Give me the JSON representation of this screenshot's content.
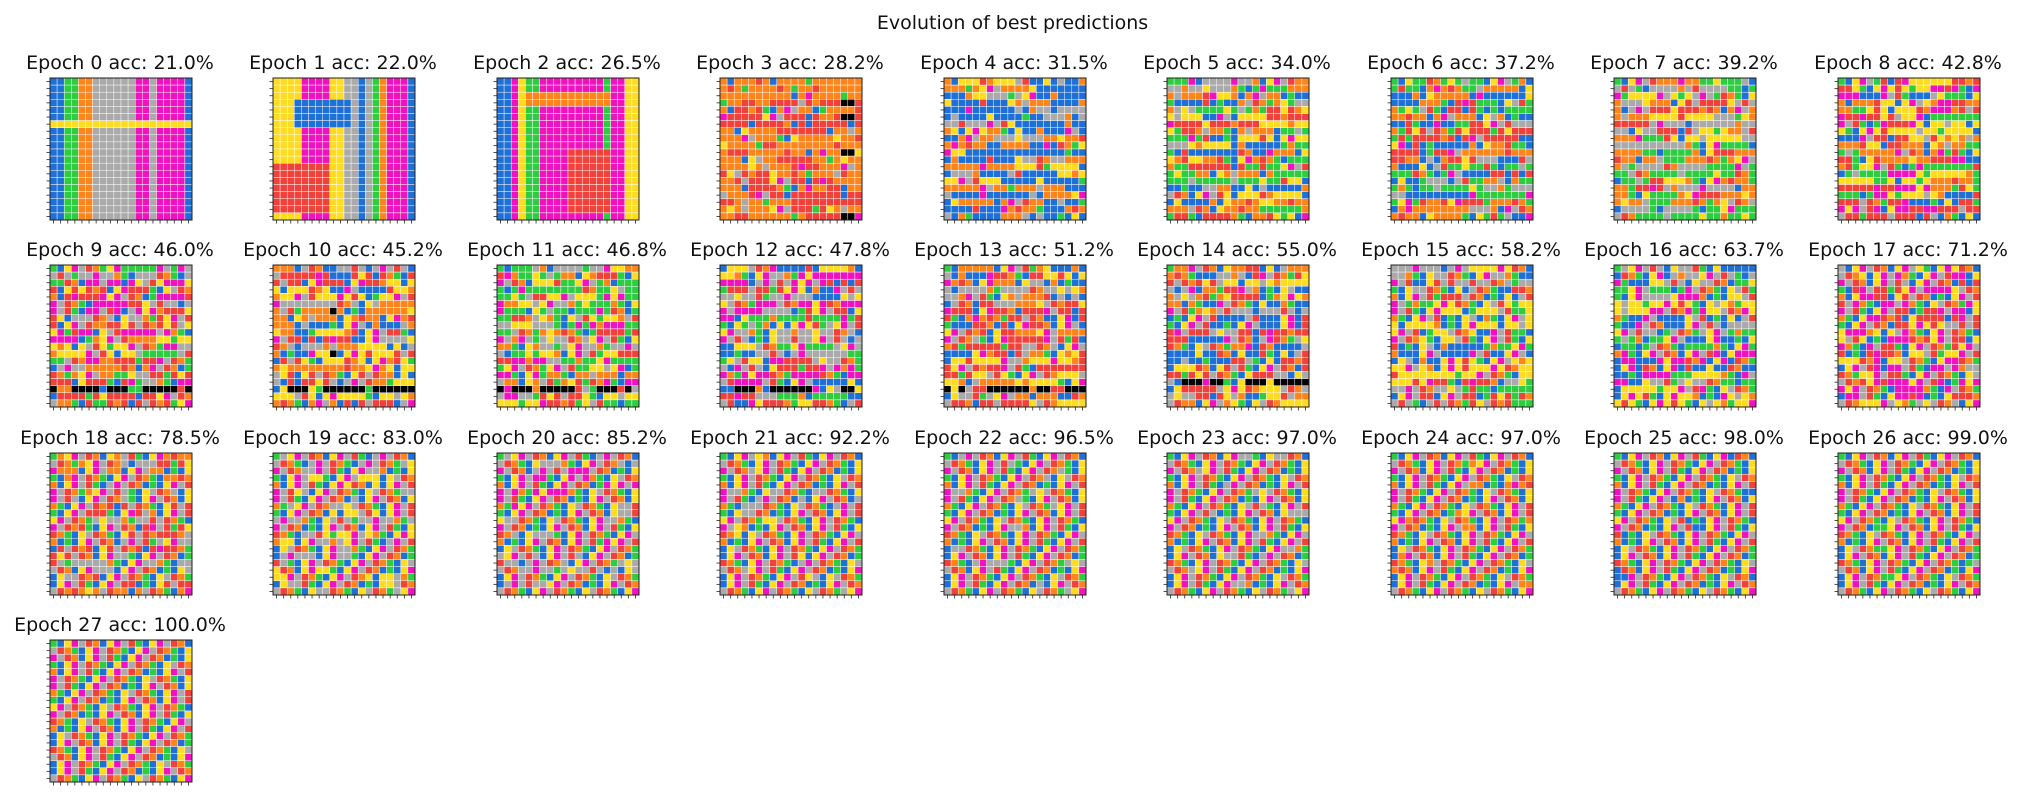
{
  "figure_title": "Evolution of best predictions",
  "palette": {
    "0": "#000000",
    "1": "#1E6FD6",
    "2": "#F2413A",
    "3": "#2ECC40",
    "4": "#FFDC1F",
    "5": "#AAAAAA",
    "6": "#F012BE",
    "7": "#FF851B",
    "8": "#7FDBFF",
    "9": "#870C25"
  },
  "chart_data": {
    "type": "heatmap",
    "title": "Evolution of best predictions",
    "grid_size": [
      20,
      20
    ],
    "target_pattern": {
      "row_a": [
        3,
        1,
        4,
        6,
        5,
        2,
        7,
        1,
        4,
        6,
        5,
        2,
        3,
        1,
        4,
        6,
        5,
        2,
        7,
        1
      ],
      "row_b": [
        5,
        2,
        7,
        3,
        1,
        4,
        6,
        5,
        2,
        7,
        3,
        1,
        4,
        6,
        5,
        2,
        7,
        3,
        1,
        4
      ]
    },
    "panels": [
      {
        "epoch": 0,
        "acc": 21.0,
        "title": "Epoch 0 acc: 21.0%",
        "style": "columns",
        "cols": [
          1,
          1,
          3,
          3,
          7,
          7,
          5,
          5,
          5,
          5,
          5,
          5,
          6,
          6,
          5,
          6,
          6,
          6,
          6,
          1
        ],
        "h_rows": [
          6
        ],
        "h_color": 4,
        "patches": []
      },
      {
        "epoch": 1,
        "acc": 22.0,
        "title": "Epoch 1 acc: 22.0%",
        "style": "columns",
        "cols": [
          4,
          4,
          4,
          4,
          6,
          6,
          6,
          6,
          4,
          4,
          5,
          5,
          1,
          5,
          3,
          7,
          6,
          6,
          6,
          1
        ],
        "h_rows": [],
        "patches": [
          [
            12,
            0,
            7,
            8,
            2
          ],
          [
            3,
            3,
            4,
            8,
            1
          ]
        ]
      },
      {
        "epoch": 2,
        "acc": 26.5,
        "title": "Epoch 2 acc: 26.5%",
        "style": "columns",
        "cols": [
          1,
          1,
          6,
          4,
          3,
          3,
          6,
          6,
          6,
          6,
          6,
          6,
          6,
          6,
          6,
          3,
          6,
          6,
          4,
          4
        ],
        "h_rows": [],
        "patches": [
          [
            2,
            4,
            2,
            12,
            7
          ],
          [
            10,
            10,
            9,
            6,
            2
          ]
        ]
      },
      {
        "epoch": 3,
        "acc": 28.2,
        "title": "Epoch 3 acc: 28.2%",
        "style": "noise",
        "seed": 103,
        "acc_frac": 0.282,
        "base": [
          2,
          7
        ],
        "black_cols": [
          17,
          18
        ]
      },
      {
        "epoch": 4,
        "acc": 31.5,
        "title": "Epoch 4 acc: 31.5%",
        "style": "noise",
        "seed": 104,
        "acc_frac": 0.315,
        "base": [
          1,
          1,
          1,
          7,
          4,
          5
        ]
      },
      {
        "epoch": 5,
        "acc": 34.0,
        "title": "Epoch 5 acc: 34.0%",
        "style": "noise",
        "seed": 105,
        "acc_frac": 0.34,
        "base": [
          7,
          7,
          1,
          3,
          4,
          5,
          2
        ]
      },
      {
        "epoch": 6,
        "acc": 37.2,
        "title": "Epoch 6 acc: 37.2%",
        "style": "noise",
        "seed": 106,
        "acc_frac": 0.372,
        "base": [
          1,
          1,
          3,
          7,
          2,
          5
        ]
      },
      {
        "epoch": 7,
        "acc": 39.2,
        "title": "Epoch 7 acc: 39.2%",
        "style": "noise",
        "seed": 107,
        "acc_frac": 0.392,
        "base": [
          7,
          7,
          4,
          2,
          5,
          3
        ]
      },
      {
        "epoch": 8,
        "acc": 42.8,
        "title": "Epoch 8 acc: 42.8%",
        "style": "noise",
        "seed": 108,
        "acc_frac": 0.428,
        "base": [
          1,
          7,
          4,
          2,
          3,
          6
        ]
      },
      {
        "epoch": 9,
        "acc": 46.0,
        "title": "Epoch 9 acc: 46.0%",
        "style": "noise",
        "seed": 109,
        "acc_frac": 0.46,
        "base": [
          7,
          4,
          5,
          2,
          3,
          6
        ],
        "black_row": 17
      },
      {
        "epoch": 10,
        "acc": 45.2,
        "title": "Epoch 10 acc: 45.2%",
        "style": "noise",
        "seed": 110,
        "acc_frac": 0.452,
        "base": [
          7,
          4,
          5,
          2,
          1
        ],
        "black_row": 17,
        "black_cols": [
          8
        ]
      },
      {
        "epoch": 11,
        "acc": 46.8,
        "title": "Epoch 11 acc: 46.8%",
        "style": "noise",
        "seed": 111,
        "acc_frac": 0.468,
        "base": [
          2,
          4,
          5,
          7,
          3,
          6
        ],
        "black_row": 17
      },
      {
        "epoch": 12,
        "acc": 47.8,
        "title": "Epoch 12 acc: 47.8%",
        "style": "noise",
        "seed": 112,
        "acc_frac": 0.478,
        "base": [
          5,
          4,
          6,
          2,
          3,
          1
        ],
        "black_row": 17
      },
      {
        "epoch": 13,
        "acc": 51.2,
        "title": "Epoch 13 acc: 51.2%",
        "style": "noise",
        "seed": 113,
        "acc_frac": 0.512,
        "base": [
          7,
          5,
          2,
          1,
          4
        ],
        "black_row": 17
      },
      {
        "epoch": 14,
        "acc": 55.0,
        "title": "Epoch 14 acc: 55.0%",
        "style": "noise",
        "seed": 114,
        "acc_frac": 0.55,
        "base": [
          5,
          1,
          4,
          2,
          7
        ],
        "black_row": 16
      },
      {
        "epoch": 15,
        "acc": 58.2,
        "title": "Epoch 15 acc: 58.2%",
        "style": "noise",
        "seed": 115,
        "acc_frac": 0.582,
        "base": [
          5,
          2,
          3,
          4,
          1
        ]
      },
      {
        "epoch": 16,
        "acc": 63.7,
        "title": "Epoch 16 acc: 63.7%",
        "style": "noise",
        "seed": 116,
        "acc_frac": 0.637,
        "base": [
          5,
          3,
          4,
          1,
          6
        ]
      },
      {
        "epoch": 17,
        "acc": 71.2,
        "title": "Epoch 17 acc: 71.2%",
        "style": "noise",
        "seed": 117,
        "acc_frac": 0.712,
        "base": [
          5,
          6,
          4,
          2
        ]
      },
      {
        "epoch": 18,
        "acc": 78.5,
        "title": "Epoch 18 acc: 78.5%",
        "style": "noise",
        "seed": 118,
        "acc_frac": 0.785,
        "base": [
          2,
          7,
          5
        ]
      },
      {
        "epoch": 19,
        "acc": 83.0,
        "title": "Epoch 19 acc: 83.0%",
        "style": "noise",
        "seed": 119,
        "acc_frac": 0.83,
        "base": [
          5,
          4
        ]
      },
      {
        "epoch": 20,
        "acc": 85.2,
        "title": "Epoch 20 acc: 85.2%",
        "style": "noise",
        "seed": 120,
        "acc_frac": 0.852,
        "base": [
          5,
          6
        ]
      },
      {
        "epoch": 21,
        "acc": 92.2,
        "title": "Epoch 21 acc: 92.2%",
        "style": "noise",
        "seed": 121,
        "acc_frac": 0.922,
        "base": [
          4,
          5
        ]
      },
      {
        "epoch": 22,
        "acc": 96.5,
        "title": "Epoch 22 acc: 96.5%",
        "style": "noise",
        "seed": 122,
        "acc_frac": 0.965,
        "base": [
          5
        ]
      },
      {
        "epoch": 23,
        "acc": 97.0,
        "title": "Epoch 23 acc: 97.0%",
        "style": "noise",
        "seed": 123,
        "acc_frac": 0.97,
        "base": [
          5
        ]
      },
      {
        "epoch": 24,
        "acc": 97.0,
        "title": "Epoch 24 acc: 97.0%",
        "style": "noise",
        "seed": 124,
        "acc_frac": 0.97,
        "base": [
          7
        ]
      },
      {
        "epoch": 25,
        "acc": 98.0,
        "title": "Epoch 25 acc: 98.0%",
        "style": "noise",
        "seed": 125,
        "acc_frac": 0.98,
        "base": [
          1
        ]
      },
      {
        "epoch": 26,
        "acc": 99.0,
        "title": "Epoch 26 acc: 99.0%",
        "style": "noise",
        "seed": 126,
        "acc_frac": 0.99,
        "base": [
          3
        ]
      },
      {
        "epoch": 27,
        "acc": 100.0,
        "title": "Epoch 27 acc: 100.0%",
        "style": "noise",
        "seed": 127,
        "acc_frac": 1.0,
        "base": [
          5
        ]
      }
    ]
  }
}
